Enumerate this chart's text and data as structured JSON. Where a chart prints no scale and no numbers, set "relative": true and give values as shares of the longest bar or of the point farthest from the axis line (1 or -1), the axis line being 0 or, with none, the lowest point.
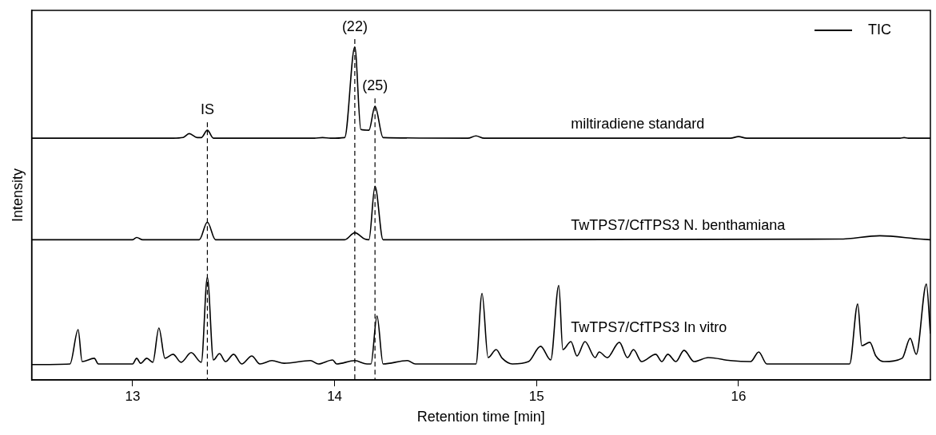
{
  "chart_data": {
    "type": "line",
    "relative": true,
    "xlabel": "Retention time [min]",
    "ylabel": "Intensity",
    "xlim": [
      12.5,
      16.95
    ],
    "xticks": [
      13,
      14,
      15,
      16
    ],
    "ref_lines": [
      {
        "axis": "x",
        "value": 13.37,
        "color": "#000000",
        "line_style": "dashed"
      },
      {
        "axis": "x",
        "value": 14.1,
        "color": "#000000",
        "line_style": "dashed"
      },
      {
        "axis": "x",
        "value": 14.2,
        "color": "#000000",
        "line_style": "dashed"
      }
    ],
    "annotations": [
      "TIC",
      {
        "text": "IS",
        "x": 13.37,
        "y": 0.75
      },
      {
        "text": "(22)",
        "x": 14.1,
        "y": 1.0
      },
      {
        "text": "(25)",
        "x": 14.2,
        "y": 0.822
      }
    ],
    "series": [
      {
        "name": "miltiradiene standard",
        "color": "#000000",
        "x": [
          12.5,
          13.2,
          13.25,
          13.28,
          13.32,
          13.34,
          13.37,
          13.4,
          13.9,
          13.94,
          13.98,
          14.05,
          14.1,
          14.13,
          14.17,
          14.2,
          14.24,
          14.66,
          14.7,
          14.74,
          15.96,
          16.0,
          16.04,
          16.8,
          16.82,
          16.84,
          16.95
        ],
        "values": [
          0.726,
          0.726,
          0.728,
          0.74,
          0.728,
          0.728,
          0.75,
          0.726,
          0.726,
          0.728,
          0.726,
          0.728,
          1.0,
          0.752,
          0.75,
          0.822,
          0.728,
          0.726,
          0.733,
          0.726,
          0.726,
          0.731,
          0.726,
          0.726,
          0.728,
          0.726,
          0.726
        ]
      },
      {
        "name": "TwTPS7/CfTPS3 N. benthamiana",
        "color": "#000000",
        "x": [
          12.5,
          13.0,
          13.02,
          13.05,
          13.33,
          13.37,
          13.41,
          14.05,
          14.1,
          14.15,
          14.17,
          14.2,
          14.24,
          16.5,
          16.7,
          16.9,
          16.95
        ],
        "values": [
          0.421,
          0.421,
          0.428,
          0.421,
          0.421,
          0.474,
          0.421,
          0.421,
          0.442,
          0.423,
          0.421,
          0.582,
          0.421,
          0.423,
          0.433,
          0.423,
          0.421
        ]
      },
      {
        "name": "TwTPS7/CfTPS3 In vitro",
        "color": "#000000",
        "x": [
          12.5,
          12.69,
          12.73,
          12.75,
          12.81,
          12.83,
          13.0,
          13.02,
          13.04,
          13.07,
          13.1,
          13.13,
          13.16,
          13.2,
          13.24,
          13.29,
          13.34,
          13.37,
          13.4,
          13.43,
          13.46,
          13.5,
          13.54,
          13.59,
          13.63,
          13.69,
          13.75,
          13.88,
          13.92,
          13.99,
          14.01,
          14.1,
          14.16,
          14.18,
          14.21,
          14.24,
          14.36,
          14.4,
          14.7,
          14.73,
          14.76,
          14.8,
          14.83,
          14.88,
          14.96,
          15.02,
          15.07,
          15.11,
          15.13,
          15.17,
          15.2,
          15.24,
          15.29,
          15.31,
          15.35,
          15.41,
          15.45,
          15.48,
          15.52,
          15.59,
          15.62,
          15.65,
          15.69,
          15.73,
          15.78,
          15.85,
          15.96,
          16.06,
          16.1,
          16.14,
          16.55,
          16.59,
          16.61,
          16.65,
          16.68,
          16.72,
          16.81,
          16.85,
          16.88,
          16.93,
          16.95
        ],
        "values": [
          0.046,
          0.048,
          0.151,
          0.055,
          0.065,
          0.048,
          0.048,
          0.065,
          0.05,
          0.065,
          0.053,
          0.156,
          0.065,
          0.077,
          0.053,
          0.082,
          0.053,
          0.308,
          0.06,
          0.079,
          0.055,
          0.077,
          0.048,
          0.072,
          0.048,
          0.058,
          0.05,
          0.058,
          0.048,
          0.06,
          0.048,
          0.058,
          0.048,
          0.048,
          0.192,
          0.048,
          0.058,
          0.048,
          0.048,
          0.26,
          0.067,
          0.091,
          0.065,
          0.048,
          0.055,
          0.101,
          0.06,
          0.284,
          0.091,
          0.115,
          0.072,
          0.115,
          0.067,
          0.084,
          0.067,
          0.113,
          0.067,
          0.091,
          0.055,
          0.077,
          0.055,
          0.077,
          0.055,
          0.089,
          0.055,
          0.067,
          0.058,
          0.055,
          0.084,
          0.048,
          0.048,
          0.228,
          0.103,
          0.113,
          0.072,
          0.055,
          0.065,
          0.125,
          0.077,
          0.288,
          0.139
        ]
      }
    ]
  }
}
